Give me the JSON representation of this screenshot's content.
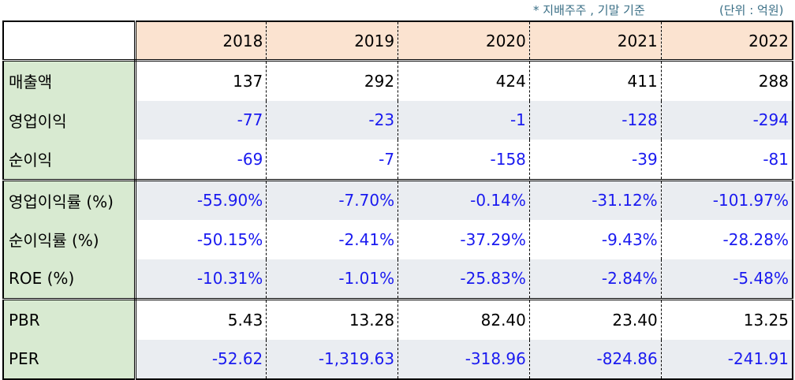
{
  "notes": {
    "basis": "* 지배주주 , 기말 기준",
    "unit": "(단위 : 억원)"
  },
  "table": {
    "years": [
      "2018",
      "2019",
      "2020",
      "2021",
      "2022"
    ],
    "rows": [
      {
        "label": "매출액",
        "values": [
          "137",
          "292",
          "424",
          "411",
          "288"
        ]
      },
      {
        "label": "영업이익",
        "values": [
          "-77",
          "-23",
          "-1",
          "-128",
          "-294"
        ]
      },
      {
        "label": "순이익",
        "values": [
          "-69",
          "-7",
          "-158",
          "-39",
          "-81"
        ]
      },
      {
        "label": "영업이익률 (%)",
        "values": [
          "-55.90%",
          "-7.70%",
          "-0.14%",
          "-31.12%",
          "-101.97%"
        ]
      },
      {
        "label": "순이익률 (%)",
        "values": [
          "-50.15%",
          "-2.41%",
          "-37.29%",
          "-9.43%",
          "-28.28%"
        ]
      },
      {
        "label": "ROE (%)",
        "values": [
          "-10.31%",
          "-1.01%",
          "-25.83%",
          "-2.84%",
          "-5.48%"
        ]
      },
      {
        "label": "PBR",
        "values": [
          "5.43",
          "13.28",
          "82.40",
          "23.40",
          "13.25"
        ]
      },
      {
        "label": "PER",
        "values": [
          "-52.62",
          "-1,319.63",
          "-318.96",
          "-824.86",
          "-241.91"
        ]
      }
    ]
  },
  "colors": {
    "header_bg": "#fbe3d0",
    "label_bg": "#d8ead1",
    "alt_row_bg": "#eaedf1",
    "negative_text": "#1a1af0",
    "note_text": "#3a6f86"
  }
}
